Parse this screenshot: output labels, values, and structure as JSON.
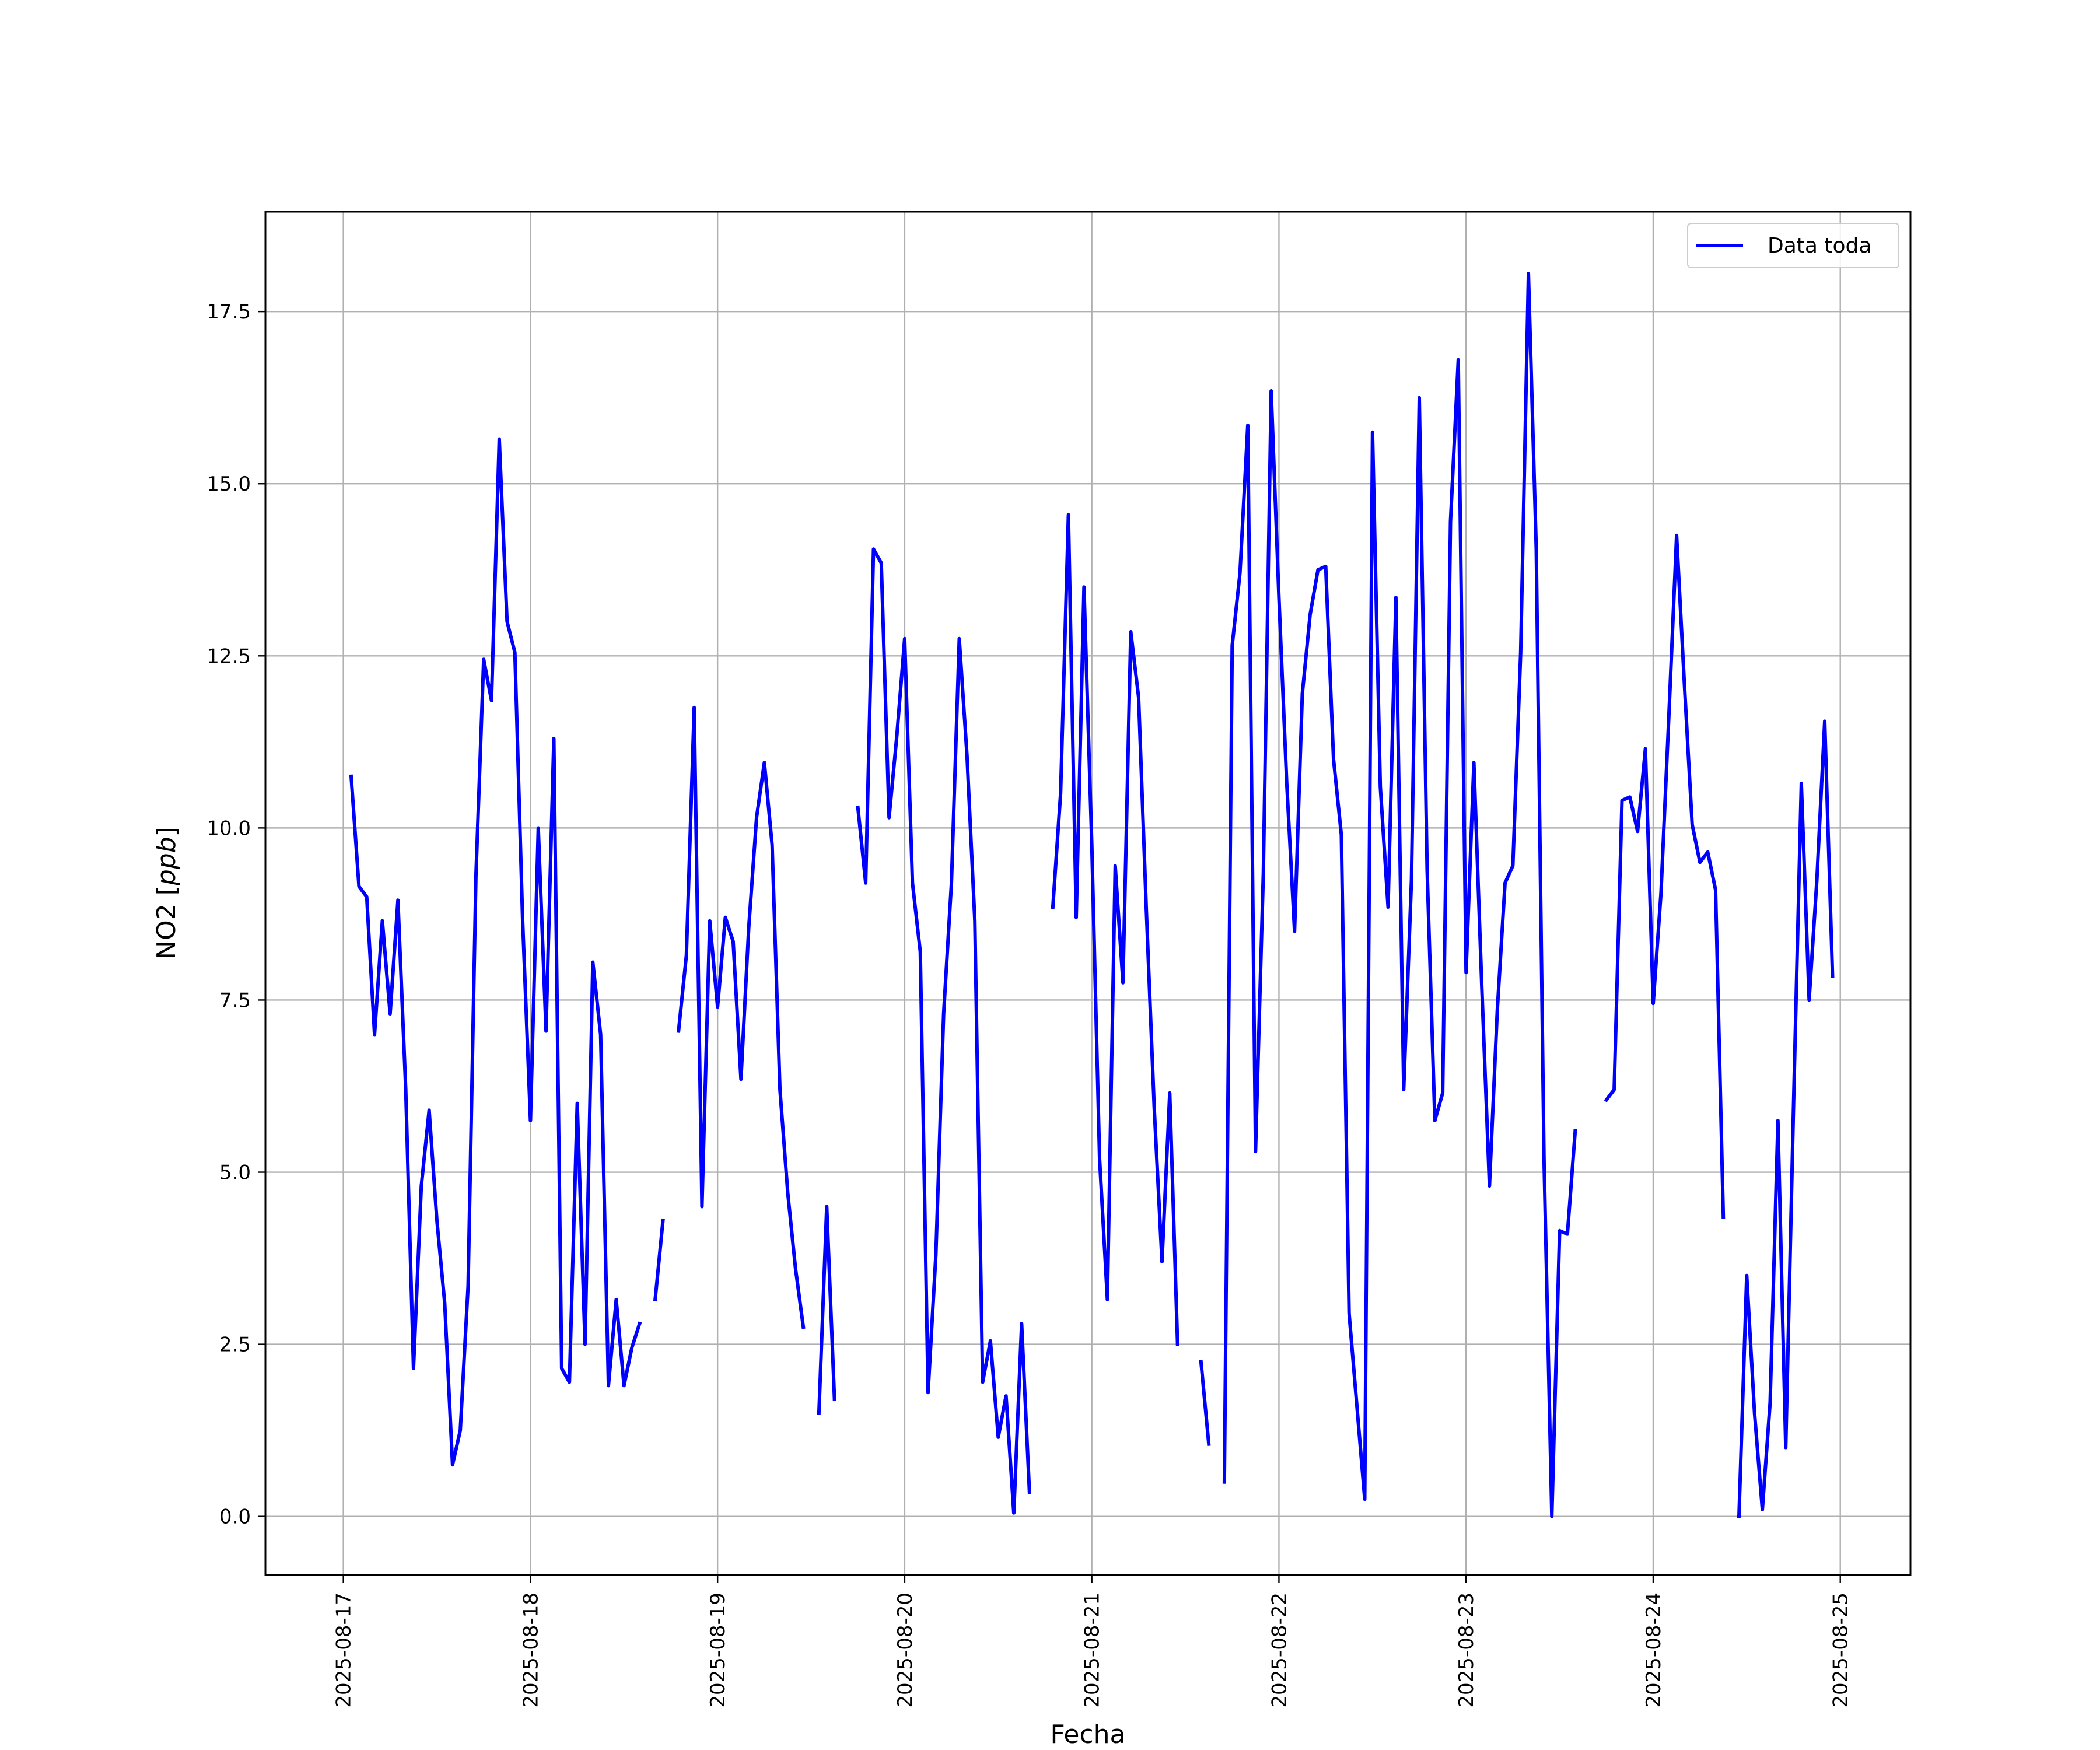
{
  "chart_data": {
    "type": "line",
    "title": "",
    "xlabel": "Fecha",
    "ylabel": "NO2 [ppb]",
    "ylabel_main": "NO2 [",
    "ylabel_unit": "ppb",
    "ylabel_close": "]",
    "x_ticks": [
      "2025-08-17",
      "2025-08-18",
      "2025-08-19",
      "2025-08-20",
      "2025-08-21",
      "2025-08-22",
      "2025-08-23",
      "2025-08-24",
      "2025-08-25"
    ],
    "y_ticks": [
      "0.0",
      "2.5",
      "5.0",
      "7.5",
      "10.0",
      "12.5",
      "15.0",
      "17.5"
    ],
    "xlim": [
      "2025-08-16T14:00",
      "2025-08-25T09:00"
    ],
    "ylim": [
      -0.85,
      18.95
    ],
    "grid": true,
    "legend": "top-right",
    "series": [
      {
        "name": "Data toda",
        "color": "#0000ff",
        "points": [
          [
            "2025-08-17T01:00",
            10.75
          ],
          [
            "2025-08-17T02:00",
            9.15
          ],
          [
            "2025-08-17T03:00",
            9.0
          ],
          [
            "2025-08-17T04:00",
            7.0
          ],
          [
            "2025-08-17T05:00",
            8.65
          ],
          [
            "2025-08-17T06:00",
            7.3
          ],
          [
            "2025-08-17T07:00",
            8.95
          ],
          [
            "2025-08-17T08:00",
            6.2
          ],
          [
            "2025-08-17T09:00",
            2.15
          ],
          [
            "2025-08-17T10:00",
            4.8
          ],
          [
            "2025-08-17T11:00",
            5.9
          ],
          [
            "2025-08-17T12:00",
            4.3
          ],
          [
            "2025-08-17T13:00",
            3.1
          ],
          [
            "2025-08-17T14:00",
            0.75
          ],
          [
            "2025-08-17T15:00",
            1.25
          ],
          [
            "2025-08-17T16:00",
            3.35
          ],
          [
            "2025-08-17T17:00",
            9.3
          ],
          [
            "2025-08-17T18:00",
            12.45
          ],
          [
            "2025-08-17T19:00",
            11.85
          ],
          [
            "2025-08-17T20:00",
            15.65
          ],
          [
            "2025-08-17T21:00",
            13.0
          ],
          [
            "2025-08-17T22:00",
            12.55
          ],
          [
            "2025-08-17T23:00",
            8.65
          ],
          [
            "2025-08-18T00:00",
            5.75
          ],
          [
            "2025-08-18T01:00",
            10.0
          ],
          [
            "2025-08-18T02:00",
            7.05
          ],
          [
            "2025-08-18T03:00",
            11.3
          ],
          [
            "2025-08-18T04:00",
            2.15
          ],
          [
            "2025-08-18T05:00",
            1.95
          ],
          [
            "2025-08-18T06:00",
            6.0
          ],
          [
            "2025-08-18T07:00",
            2.5
          ],
          [
            "2025-08-18T08:00",
            8.05
          ],
          [
            "2025-08-18T09:00",
            7.0
          ],
          [
            "2025-08-18T10:00",
            1.9
          ],
          [
            "2025-08-18T11:00",
            3.15
          ],
          [
            "2025-08-18T12:00",
            1.9
          ],
          [
            "2025-08-18T13:00",
            2.45
          ],
          [
            "2025-08-18T14:00",
            2.8
          ],
          null,
          [
            "2025-08-18T16:00",
            3.15
          ],
          [
            "2025-08-18T17:00",
            4.3
          ],
          null,
          [
            "2025-08-18T19:00",
            7.05
          ],
          [
            "2025-08-18T20:00",
            8.15
          ],
          [
            "2025-08-18T21:00",
            11.75
          ],
          [
            "2025-08-18T22:00",
            4.5
          ],
          [
            "2025-08-18T23:00",
            8.65
          ],
          [
            "2025-08-19T00:00",
            7.4
          ],
          [
            "2025-08-19T01:00",
            8.7
          ],
          [
            "2025-08-19T02:00",
            8.35
          ],
          [
            "2025-08-19T03:00",
            6.35
          ],
          [
            "2025-08-19T04:00",
            8.55
          ],
          [
            "2025-08-19T05:00",
            10.15
          ],
          [
            "2025-08-19T06:00",
            10.95
          ],
          [
            "2025-08-19T07:00",
            9.75
          ],
          [
            "2025-08-19T08:00",
            6.2
          ],
          [
            "2025-08-19T09:00",
            4.7
          ],
          [
            "2025-08-19T10:00",
            3.6
          ],
          [
            "2025-08-19T11:00",
            2.75
          ],
          null,
          [
            "2025-08-19T13:00",
            1.5
          ],
          [
            "2025-08-19T14:00",
            4.5
          ],
          [
            "2025-08-19T15:00",
            1.7
          ],
          null,
          [
            "2025-08-19T18:00",
            10.3
          ],
          [
            "2025-08-19T19:00",
            9.2
          ],
          [
            "2025-08-19T20:00",
            14.05
          ],
          [
            "2025-08-19T21:00",
            13.85
          ],
          [
            "2025-08-19T22:00",
            10.15
          ],
          [
            "2025-08-19T23:00",
            11.35
          ],
          [
            "2025-08-20T00:00",
            12.75
          ],
          [
            "2025-08-20T01:00",
            9.2
          ],
          [
            "2025-08-20T02:00",
            8.2
          ],
          [
            "2025-08-20T03:00",
            1.8
          ],
          [
            "2025-08-20T04:00",
            3.8
          ],
          [
            "2025-08-20T05:00",
            7.3
          ],
          [
            "2025-08-20T06:00",
            9.2
          ],
          [
            "2025-08-20T07:00",
            12.75
          ],
          [
            "2025-08-20T08:00",
            11.05
          ],
          [
            "2025-08-20T09:00",
            8.65
          ],
          [
            "2025-08-20T10:00",
            1.95
          ],
          [
            "2025-08-20T11:00",
            2.55
          ],
          [
            "2025-08-20T12:00",
            1.15
          ],
          [
            "2025-08-20T13:00",
            1.75
          ],
          [
            "2025-08-20T14:00",
            0.05
          ],
          [
            "2025-08-20T15:00",
            2.8
          ],
          [
            "2025-08-20T16:00",
            0.35
          ],
          null,
          [
            "2025-08-20T19:00",
            8.85
          ],
          [
            "2025-08-20T20:00",
            10.5
          ],
          [
            "2025-08-20T21:00",
            14.55
          ],
          [
            "2025-08-20T22:00",
            8.7
          ],
          [
            "2025-08-20T23:00",
            13.5
          ],
          [
            "2025-08-21T00:00",
            9.75
          ],
          [
            "2025-08-21T01:00",
            5.2
          ],
          [
            "2025-08-21T02:00",
            3.15
          ],
          [
            "2025-08-21T03:00",
            9.45
          ],
          [
            "2025-08-21T04:00",
            7.75
          ],
          [
            "2025-08-21T05:00",
            12.85
          ],
          [
            "2025-08-21T06:00",
            11.9
          ],
          [
            "2025-08-21T07:00",
            8.8
          ],
          [
            "2025-08-21T08:00",
            5.95
          ],
          [
            "2025-08-21T09:00",
            3.7
          ],
          [
            "2025-08-21T10:00",
            6.15
          ],
          [
            "2025-08-21T11:00",
            2.5
          ],
          null,
          [
            "2025-08-21T14:00",
            2.25
          ],
          [
            "2025-08-21T15:00",
            1.05
          ],
          null,
          [
            "2025-08-21T17:00",
            0.5
          ],
          [
            "2025-08-21T18:00",
            12.65
          ],
          [
            "2025-08-21T19:00",
            13.7
          ],
          [
            "2025-08-21T20:00",
            15.85
          ],
          [
            "2025-08-21T21:00",
            5.3
          ],
          [
            "2025-08-21T22:00",
            9.35
          ],
          [
            "2025-08-21T23:00",
            16.35
          ],
          [
            "2025-08-22T00:00",
            13.35
          ],
          [
            "2025-08-22T01:00",
            10.65
          ],
          [
            "2025-08-22T02:00",
            8.5
          ],
          [
            "2025-08-22T03:00",
            11.95
          ],
          [
            "2025-08-22T04:00",
            13.1
          ],
          [
            "2025-08-22T05:00",
            13.75
          ],
          [
            "2025-08-22T06:00",
            13.8
          ],
          [
            "2025-08-22T07:00",
            11.0
          ],
          [
            "2025-08-22T08:00",
            9.9
          ],
          [
            "2025-08-22T09:00",
            2.95
          ],
          [
            "2025-08-22T10:00",
            1.6
          ],
          [
            "2025-08-22T11:00",
            0.25
          ],
          [
            "2025-08-22T12:00",
            15.75
          ],
          [
            "2025-08-22T13:00",
            10.6
          ],
          [
            "2025-08-22T14:00",
            8.85
          ],
          [
            "2025-08-22T15:00",
            13.35
          ],
          [
            "2025-08-22T16:00",
            6.2
          ],
          [
            "2025-08-22T17:00",
            9.25
          ],
          [
            "2025-08-22T18:00",
            16.25
          ],
          [
            "2025-08-22T19:00",
            9.4
          ],
          [
            "2025-08-22T20:00",
            5.75
          ],
          [
            "2025-08-22T21:00",
            6.15
          ],
          [
            "2025-08-22T22:00",
            14.45
          ],
          [
            "2025-08-22T23:00",
            16.8
          ],
          [
            "2025-08-23T00:00",
            7.9
          ],
          [
            "2025-08-23T01:00",
            10.95
          ],
          [
            "2025-08-23T02:00",
            7.75
          ],
          [
            "2025-08-23T03:00",
            4.8
          ],
          [
            "2025-08-23T04:00",
            7.35
          ],
          [
            "2025-08-23T05:00",
            9.2
          ],
          [
            "2025-08-23T06:00",
            9.45
          ],
          [
            "2025-08-23T07:00",
            12.55
          ],
          [
            "2025-08-23T08:00",
            18.05
          ],
          [
            "2025-08-23T09:00",
            14.05
          ],
          [
            "2025-08-23T10:00",
            5.2
          ],
          [
            "2025-08-23T11:00",
            0.0
          ],
          [
            "2025-08-23T12:00",
            4.15
          ],
          [
            "2025-08-23T13:00",
            4.1
          ],
          [
            "2025-08-23T14:00",
            5.6
          ],
          null,
          [
            "2025-08-23T18:00",
            6.05
          ],
          [
            "2025-08-23T19:00",
            6.2
          ],
          [
            "2025-08-23T20:00",
            10.4
          ],
          [
            "2025-08-23T21:00",
            10.45
          ],
          [
            "2025-08-23T22:00",
            9.95
          ],
          [
            "2025-08-23T23:00",
            11.15
          ],
          [
            "2025-08-24T00:00",
            7.45
          ],
          [
            "2025-08-24T01:00",
            9.05
          ],
          [
            "2025-08-24T02:00",
            11.6
          ],
          [
            "2025-08-24T03:00",
            14.25
          ],
          [
            "2025-08-24T04:00",
            12.1
          ],
          [
            "2025-08-24T05:00",
            10.05
          ],
          [
            "2025-08-24T06:00",
            9.5
          ],
          [
            "2025-08-24T07:00",
            9.65
          ],
          [
            "2025-08-24T08:00",
            9.1
          ],
          [
            "2025-08-24T09:00",
            4.35
          ],
          null,
          [
            "2025-08-24T11:00",
            0.0
          ],
          [
            "2025-08-24T12:00",
            3.5
          ],
          [
            "2025-08-24T13:00",
            1.5
          ],
          [
            "2025-08-24T14:00",
            0.1
          ],
          [
            "2025-08-24T15:00",
            1.65
          ],
          [
            "2025-08-24T16:00",
            5.75
          ],
          [
            "2025-08-24T17:00",
            1.0
          ],
          [
            "2025-08-24T18:00",
            5.95
          ],
          [
            "2025-08-24T19:00",
            10.65
          ],
          [
            "2025-08-24T20:00",
            7.5
          ],
          [
            "2025-08-24T21:00",
            9.25
          ],
          [
            "2025-08-24T22:00",
            11.55
          ],
          [
            "2025-08-24T23:00",
            7.85
          ]
        ]
      }
    ]
  }
}
